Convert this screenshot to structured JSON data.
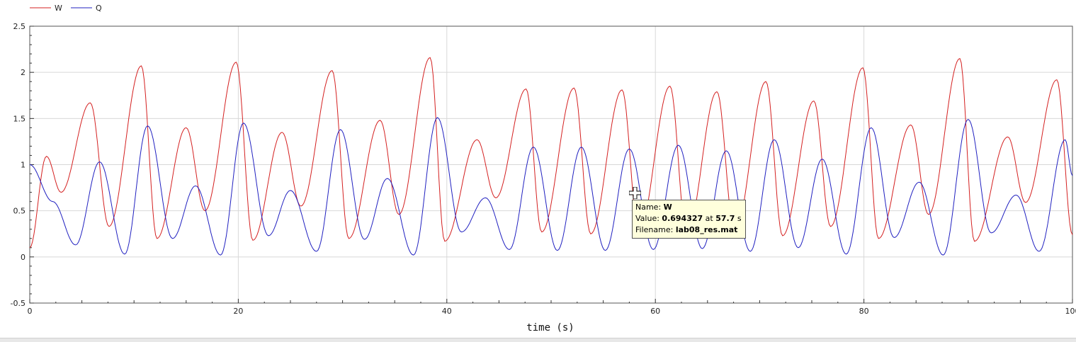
{
  "chart_data": {
    "type": "line",
    "xlabel": "time (s)",
    "ylabel": "",
    "xlim": [
      0,
      100
    ],
    "ylim": [
      -0.5,
      2.5
    ],
    "x_ticks": [
      "0",
      "20",
      "40",
      "60",
      "80",
      "100"
    ],
    "y_ticks": [
      "-0.5",
      "0",
      "0.5",
      "1",
      "1.5",
      "2",
      "2.5"
    ],
    "grid": true,
    "legend_position": "top-left",
    "series": [
      {
        "name": "W",
        "color": "#d42020",
        "peaks": [
          [
            1.6,
            1.09
          ],
          [
            5.8,
            1.67
          ],
          [
            10.7,
            2.07
          ],
          [
            15.0,
            1.4
          ],
          [
            19.8,
            2.11
          ],
          [
            24.2,
            1.35
          ],
          [
            29.0,
            2.02
          ],
          [
            33.6,
            1.48
          ],
          [
            38.4,
            2.16
          ],
          [
            42.9,
            1.27
          ],
          [
            47.6,
            1.82
          ],
          [
            52.2,
            1.83
          ],
          [
            56.8,
            1.81
          ],
          [
            61.4,
            1.85
          ],
          [
            65.9,
            1.79
          ],
          [
            70.6,
            1.9
          ],
          [
            75.2,
            1.69
          ],
          [
            79.9,
            2.05
          ],
          [
            84.5,
            1.43
          ],
          [
            89.2,
            2.15
          ],
          [
            93.8,
            1.3
          ],
          [
            98.5,
            1.92
          ]
        ],
        "troughs": [
          [
            0.0,
            0.1
          ],
          [
            3.0,
            0.7
          ],
          [
            7.6,
            0.33
          ],
          [
            12.2,
            0.2
          ],
          [
            16.8,
            0.5
          ],
          [
            21.4,
            0.18
          ],
          [
            26.0,
            0.55
          ],
          [
            30.6,
            0.2
          ],
          [
            35.4,
            0.46
          ],
          [
            39.8,
            0.17
          ],
          [
            44.7,
            0.64
          ],
          [
            49.1,
            0.27
          ],
          [
            53.8,
            0.25
          ],
          [
            58.4,
            0.27
          ],
          [
            63.0,
            0.25
          ],
          [
            67.6,
            0.26
          ],
          [
            72.2,
            0.23
          ],
          [
            76.8,
            0.33
          ],
          [
            81.4,
            0.2
          ],
          [
            86.2,
            0.46
          ],
          [
            90.6,
            0.17
          ],
          [
            95.5,
            0.59
          ],
          [
            100.0,
            0.24
          ]
        ]
      },
      {
        "name": "Q",
        "color": "#2020c0",
        "peaks": [
          [
            0.0,
            1.0
          ],
          [
            2.2,
            0.6
          ],
          [
            6.7,
            1.03
          ],
          [
            11.3,
            1.42
          ],
          [
            15.9,
            0.77
          ],
          [
            20.5,
            1.45
          ],
          [
            25.0,
            0.72
          ],
          [
            29.8,
            1.38
          ],
          [
            34.3,
            0.85
          ],
          [
            39.1,
            1.51
          ],
          [
            43.7,
            0.64
          ],
          [
            48.3,
            1.19
          ],
          [
            52.9,
            1.19
          ],
          [
            57.5,
            1.17
          ],
          [
            62.2,
            1.21
          ],
          [
            66.8,
            1.15
          ],
          [
            71.4,
            1.27
          ],
          [
            76.0,
            1.06
          ],
          [
            80.7,
            1.4
          ],
          [
            85.3,
            0.81
          ],
          [
            90.0,
            1.49
          ],
          [
            94.6,
            0.67
          ],
          [
            99.3,
            1.27
          ]
        ],
        "troughs": [
          [
            4.4,
            0.13
          ],
          [
            9.1,
            0.03
          ],
          [
            13.7,
            0.2
          ],
          [
            18.3,
            0.02
          ],
          [
            22.9,
            0.23
          ],
          [
            27.5,
            0.06
          ],
          [
            32.1,
            0.19
          ],
          [
            36.8,
            0.02
          ],
          [
            41.4,
            0.27
          ],
          [
            46.0,
            0.08
          ],
          [
            50.6,
            0.07
          ],
          [
            55.2,
            0.07
          ],
          [
            59.8,
            0.08
          ],
          [
            64.5,
            0.09
          ],
          [
            69.1,
            0.06
          ],
          [
            73.7,
            0.1
          ],
          [
            78.3,
            0.03
          ],
          [
            82.9,
            0.21
          ],
          [
            87.6,
            0.02
          ],
          [
            92.2,
            0.26
          ],
          [
            96.8,
            0.06
          ],
          [
            100.0,
            0.88
          ]
        ]
      }
    ]
  },
  "tooltip": {
    "name_label": "Name: ",
    "name_value": "W",
    "value_label": "Value: ",
    "value_number": "0.694327",
    "value_at": " at ",
    "value_time": "57.7",
    "value_unit": " s",
    "file_label": "Filename: ",
    "file_value": "lab08_res.mat"
  }
}
